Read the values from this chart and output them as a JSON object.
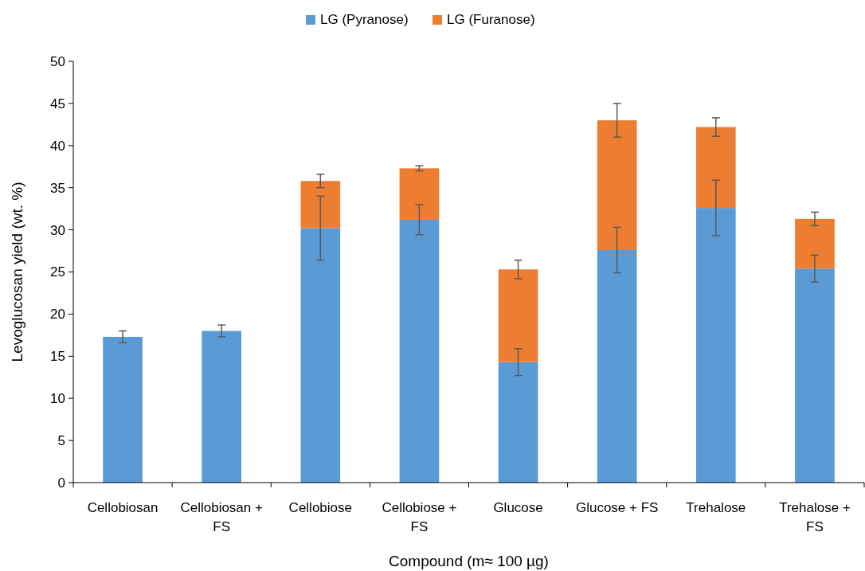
{
  "chart_data": {
    "type": "bar",
    "stacked": true,
    "xlabel": "Compound (m≈ 100 µg)",
    "ylabel": "Levoglucosan yield (wt. %)",
    "categories": [
      "Cellobiosan",
      "Cellobiosan + FS",
      "Cellobiose",
      "Cellobiose + FS",
      "Glucose",
      "Glucose + FS",
      "Trehalose",
      "Trehalose + FS"
    ],
    "series": [
      {
        "name": "LG (Pyranose)",
        "color": "#5b9bd5",
        "values": [
          17.3,
          18.0,
          30.2,
          31.2,
          14.3,
          27.6,
          32.6,
          25.4
        ],
        "errors": [
          0.7,
          0.7,
          3.8,
          1.8,
          1.6,
          2.7,
          3.3,
          1.6
        ]
      },
      {
        "name": "LG (Furanose)",
        "color": "#ed7d31",
        "values": [
          0,
          0,
          5.6,
          6.1,
          11.0,
          15.4,
          9.6,
          5.9
        ],
        "errors": [
          null,
          null,
          0.8,
          0.3,
          1.1,
          2.0,
          1.1,
          0.8
        ]
      }
    ],
    "ylim": [
      0,
      50
    ],
    "yticks": [
      0,
      5,
      10,
      15,
      20,
      25,
      30,
      35,
      40,
      45,
      50
    ],
    "grid": false,
    "legend": "top"
  }
}
